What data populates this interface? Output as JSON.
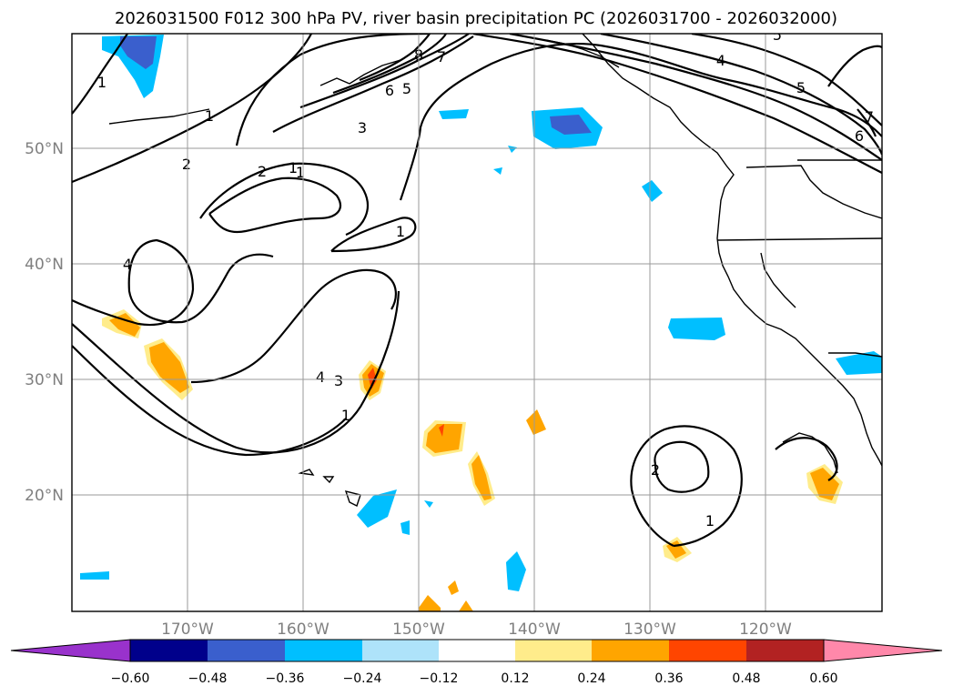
{
  "chart_data": {
    "type": "map",
    "title": "2026031500 F012 300 hPa PV, river basin precipitation PC (2026031700 - 2026032000)",
    "lon_ticks": [
      "170°W",
      "160°W",
      "150°W",
      "140°W",
      "130°W",
      "120°W"
    ],
    "lat_ticks": [
      "50°N",
      "40°N",
      "30°N",
      "20°N"
    ],
    "grid": true,
    "colorbar": {
      "orientation": "horizontal",
      "ticks": [
        "−0.60",
        "−0.48",
        "−0.36",
        "−0.24",
        "−0.12",
        "0.12",
        "0.24",
        "0.36",
        "0.48",
        "0.60"
      ],
      "colors": [
        "#9932cc",
        "#00008b",
        "#3a5fcd",
        "#00bfff",
        "#aee3fa",
        "#ffffff",
        "#ffec8b",
        "#ffa500",
        "#ff4500",
        "#b22222",
        "#ff88aa"
      ]
    },
    "contour_labels": [
      "1",
      "1",
      "2",
      "1",
      "2",
      "1",
      "1",
      "4",
      "3",
      "1",
      "4",
      "3",
      "6",
      "5",
      "8",
      "7",
      "4",
      "5",
      "6",
      "7",
      "5",
      "2",
      "1"
    ]
  }
}
